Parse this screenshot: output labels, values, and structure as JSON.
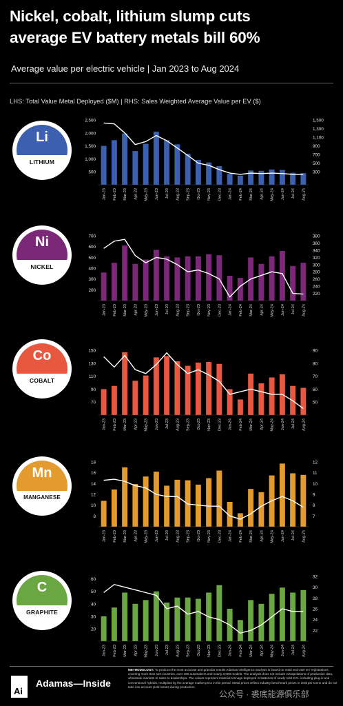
{
  "title_line1": "Nickel, cobalt, lithium slump cuts",
  "title_line2": "average EV battery metals bill 60%",
  "subtitle": "Average value per electric vehicle | Jan 2023 to Aug 2024",
  "axes_note": "LHS: Total Value Metal Deployed ($M) | RHS: Sales Weighted Average Value per EV ($)",
  "brand": "Adamas—Inside",
  "logo_text": "Ai",
  "methodology_label": "METHODOLOGY:",
  "methodology_text": "To produce the most accurate and granular results Adamas Intelligence analysis is based on retail end-user EV registrations covering more than 110 countries, over 180 automakers and nearly 3,000 models. The analysis does not include extrapolations of production data, wholesale markets or sales to dealerships. The values represent material tonnage deployed in batteries of newly sold EVs, including plug-in and conventional hybrids, multiplied by the average market price in the period. Metal prices reflect industry benchmark prices in US$ per tonne and do not take into account yield losses during production.",
  "watermark": "公众号 · 裘底能源俱乐部",
  "colors": {
    "lithium": "#3d5fb0",
    "nickel": "#7b2878",
    "cobalt": "#e85840",
    "manganese": "#e39b30",
    "graphite": "#6aa743",
    "line": "#ffffff"
  },
  "chart_data": [
    {
      "type": "bar",
      "metal": "Lithium",
      "symbol": "Li",
      "badge_name": "LITHIUM",
      "categories": [
        "Jan-23",
        "Feb-23",
        "Mar-23",
        "Apr-23",
        "May-23",
        "Jun-23",
        "Jul-23",
        "Aug-23",
        "Sep-23",
        "Oct-23",
        "Nov-23",
        "Dec-23",
        "Jan-24",
        "Feb-24",
        "Mar-24",
        "Apr-24",
        "May-24",
        "Jun-24",
        "Jul-24",
        "Aug-24"
      ],
      "bars": [
        1500,
        1720,
        1980,
        1300,
        1580,
        2050,
        1720,
        1560,
        1200,
        960,
        860,
        720,
        420,
        350,
        550,
        540,
        590,
        570,
        460,
        450
      ],
      "line": [
        1430,
        1410,
        1200,
        930,
        1000,
        1140,
        1020,
        850,
        680,
        500,
        450,
        350,
        270,
        240,
        270,
        260,
        270,
        260,
        240,
        240
      ],
      "ylim_left": [
        0,
        2500
      ],
      "yticks_left": [
        "2,500",
        "2,000",
        "1,500",
        "1,000",
        "500"
      ],
      "yticks_left_values": [
        2500,
        2000,
        1500,
        1000,
        500
      ],
      "ylim_right": [
        0,
        1500
      ],
      "yticks_right": [
        "1,500",
        "1,300",
        "1,100",
        "900",
        "700",
        "500",
        "300"
      ],
      "yticks_right_values": [
        1500,
        1300,
        1100,
        900,
        700,
        500,
        300
      ]
    },
    {
      "type": "bar",
      "metal": "Nickel",
      "symbol": "Ni",
      "badge_name": "NICKEL",
      "categories": [
        "Jan-23",
        "Feb-23",
        "Mar-23",
        "Apr-23",
        "May-23",
        "Jun-23",
        "Jul-23",
        "Aug-23",
        "Sep-23",
        "Oct-23",
        "Nov-23",
        "Dec-23",
        "Jan-24",
        "Feb-24",
        "Mar-24",
        "Apr-24",
        "May-24",
        "Jun-24",
        "Jul-24",
        "Aug-24"
      ],
      "bars": [
        360,
        450,
        610,
        440,
        480,
        570,
        510,
        500,
        510,
        510,
        530,
        520,
        330,
        310,
        500,
        440,
        510,
        560,
        420,
        450
      ],
      "line": [
        345,
        365,
        370,
        325,
        305,
        320,
        315,
        300,
        280,
        285,
        275,
        260,
        210,
        240,
        260,
        270,
        280,
        275,
        220,
        218
      ],
      "ylim_left": [
        100,
        700
      ],
      "yticks_left": [
        "700",
        "600",
        "500",
        "400",
        "300",
        "200"
      ],
      "yticks_left_values": [
        700,
        600,
        500,
        400,
        300,
        200
      ],
      "ylim_right": [
        200,
        380
      ],
      "yticks_right": [
        "380",
        "360",
        "340",
        "320",
        "300",
        "280",
        "260",
        "240",
        "220"
      ],
      "yticks_right_values": [
        380,
        360,
        340,
        320,
        300,
        280,
        260,
        240,
        220
      ]
    },
    {
      "type": "bar",
      "metal": "Cobalt",
      "symbol": "Co",
      "badge_name": "COBALT",
      "categories": [
        "Jan-23",
        "Feb-23",
        "Mar-23",
        "Apr-23",
        "May-23",
        "Jun-23",
        "Jul-23",
        "Aug-23",
        "Sep-23",
        "Oct-23",
        "Nov-23",
        "Dec-23",
        "Jan-24",
        "Feb-24",
        "Mar-24",
        "Apr-24",
        "May-24",
        "Jun-24",
        "Jul-24",
        "Aug-24"
      ],
      "bars": [
        90,
        95,
        147,
        103,
        111,
        139,
        141,
        133,
        126,
        131,
        132,
        129,
        90,
        74,
        114,
        99,
        108,
        113,
        95,
        92
      ],
      "line": [
        85,
        77,
        86,
        75,
        72,
        79,
        88,
        79,
        72,
        75,
        71,
        66,
        56,
        58,
        60,
        58,
        56,
        56,
        51,
        45
      ],
      "ylim_left": [
        50,
        150
      ],
      "yticks_left": [
        "150",
        "130",
        "110",
        "90",
        "70"
      ],
      "yticks_left_values": [
        150,
        130,
        110,
        90,
        70
      ],
      "ylim_right": [
        40,
        90
      ],
      "yticks_right": [
        "90",
        "80",
        "70",
        "60",
        "50"
      ],
      "yticks_right_values": [
        90,
        80,
        70,
        60,
        50
      ]
    },
    {
      "type": "bar",
      "metal": "Manganese",
      "symbol": "Mn",
      "badge_name": "MANGANESE",
      "categories": [
        "Jan-23",
        "Feb-23",
        "Mar-23",
        "Apr-23",
        "May-23",
        "Jun-23",
        "Jul-23",
        "Aug-23",
        "Sep-23",
        "Oct-23",
        "Nov-23",
        "Dec-23",
        "Jan-24",
        "Feb-24",
        "Mar-24",
        "Apr-24",
        "May-24",
        "Jun-24",
        "Jul-24",
        "Aug-24"
      ],
      "bars": [
        10.8,
        12.9,
        17.0,
        13.9,
        15.3,
        16.2,
        13.6,
        14.7,
        14.6,
        13.8,
        15.0,
        16.4,
        10.6,
        8.5,
        13.0,
        12.4,
        15.5,
        17.7,
        15.9,
        15.6
      ],
      "line": [
        10.3,
        10.4,
        10.2,
        9.8,
        9.6,
        9.0,
        8.8,
        8.8,
        8.1,
        8.0,
        7.9,
        7.9,
        7.0,
        6.7,
        7.2,
        7.9,
        8.4,
        8.8,
        8.4,
        7.8
      ],
      "ylim_left": [
        6,
        18
      ],
      "yticks_left": [
        "18",
        "16",
        "14",
        "12",
        "10",
        "8"
      ],
      "yticks_left_values": [
        18,
        16,
        14,
        12,
        10,
        8
      ],
      "ylim_right": [
        6,
        12
      ],
      "yticks_right": [
        "12",
        "11",
        "10",
        "9",
        "8",
        "7"
      ],
      "yticks_right_values": [
        12,
        11,
        10,
        9,
        8,
        7
      ]
    },
    {
      "type": "bar",
      "metal": "Graphite",
      "symbol": "C",
      "badge_name": "GRAPHITE",
      "categories": [
        "Jan-23",
        "Feb-23",
        "Mar-23",
        "Apr-23",
        "May-23",
        "Jun-23",
        "Jul-23",
        "Aug-23",
        "Sep-23",
        "Oct-23",
        "Nov-23",
        "Dec-23",
        "Jan-24",
        "Feb-24",
        "Mar-24",
        "Apr-24",
        "May-24",
        "Jun-24",
        "Jul-24",
        "Aug-24"
      ],
      "bars": [
        30,
        37,
        49,
        40,
        43,
        50,
        41,
        45,
        45,
        44,
        49,
        55,
        36,
        27,
        43,
        40,
        48,
        53,
        49,
        51
      ],
      "line": [
        29,
        30.5,
        30,
        29.5,
        29,
        28.5,
        26,
        26.5,
        25,
        25.5,
        24.5,
        24,
        23,
        21.5,
        22,
        23,
        24.5,
        26,
        25.5,
        25.5
      ],
      "ylim_left": [
        10,
        62
      ],
      "yticks_left": [
        "60",
        "50",
        "40",
        "30",
        "20"
      ],
      "yticks_left_values": [
        60,
        50,
        40,
        30,
        20
      ],
      "ylim_right": [
        20,
        32
      ],
      "yticks_right": [
        "32",
        "30",
        "28",
        "26",
        "24",
        "22"
      ],
      "yticks_right_values": [
        32,
        30,
        28,
        26,
        24,
        22
      ]
    }
  ]
}
